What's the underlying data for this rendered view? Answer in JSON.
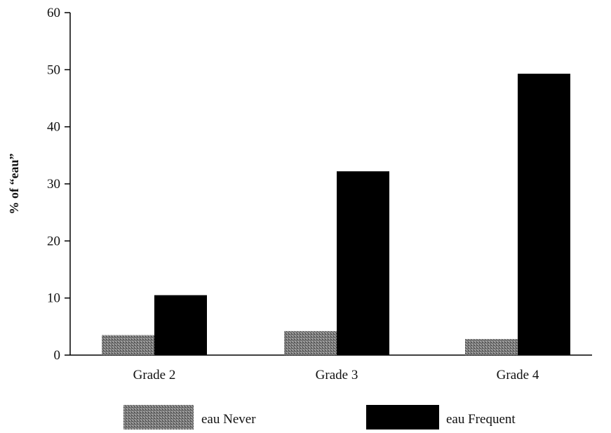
{
  "chart_data": {
    "type": "bar",
    "ylabel": "% of “eau”",
    "xlabel": "",
    "ylim": [
      0,
      60
    ],
    "yticks": [
      0,
      10,
      20,
      30,
      40,
      50,
      60
    ],
    "grid": false,
    "legend_position": "bottom",
    "categories": [
      "Grade 2",
      "Grade 3",
      "Grade 4"
    ],
    "series": [
      {
        "name": "eau Never",
        "values": [
          3.5,
          4.2,
          2.8
        ],
        "color": "#6e6e6e",
        "pattern": "stipple"
      },
      {
        "name": "eau Frequent",
        "values": [
          10.5,
          32.2,
          49.3
        ],
        "color": "#000000",
        "pattern": "solid"
      }
    ]
  }
}
